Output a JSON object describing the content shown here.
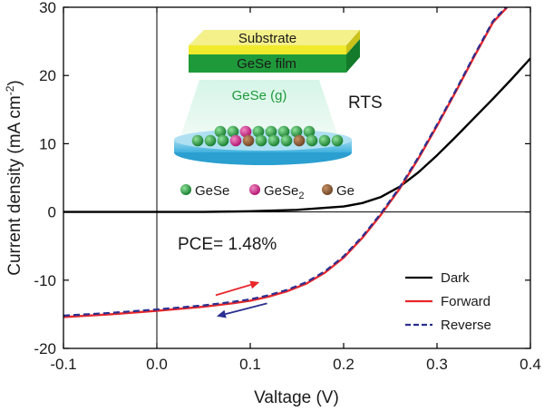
{
  "chart_data": {
    "type": "line",
    "xlabel": "Valtage (V)",
    "ylabel": "Current density (mA cm",
    "ylabel_sup": "-2",
    "ylabel_close": ")",
    "xlim": [
      -0.1,
      0.4
    ],
    "ylim": [
      -20,
      30
    ],
    "xticks": [
      -0.1,
      0.0,
      0.1,
      0.2,
      0.3,
      0.4
    ],
    "xtick_labels": [
      "-0.1",
      "0.0",
      "0.1",
      "0.2",
      "0.3",
      "0.4"
    ],
    "yticks": [
      -20,
      -10,
      0,
      10,
      20,
      30
    ],
    "ytick_labels": [
      "-20",
      "-10",
      "0",
      "10",
      "20",
      "30"
    ],
    "reference_lines": {
      "x": 0,
      "y": 0
    },
    "annotation": "PCE= 1.48%",
    "legend_position": "bottom-right",
    "series": [
      {
        "name": "Dark",
        "color": "#000000",
        "dash": "solid",
        "x": [
          -0.1,
          0.0,
          0.05,
          0.1,
          0.15,
          0.2,
          0.22,
          0.24,
          0.26,
          0.28,
          0.3,
          0.32,
          0.34,
          0.36,
          0.38,
          0.4
        ],
        "y": [
          0,
          0,
          0,
          0.1,
          0.3,
          0.8,
          1.3,
          2.2,
          3.7,
          5.8,
          8.3,
          11.0,
          13.8,
          16.6,
          19.5,
          22.5
        ]
      },
      {
        "name": "Forward",
        "color": "#e8262a",
        "dash": "solid",
        "x": [
          -0.1,
          -0.05,
          0.0,
          0.05,
          0.08,
          0.1,
          0.12,
          0.14,
          0.16,
          0.18,
          0.2,
          0.22,
          0.24,
          0.26,
          0.28,
          0.3,
          0.32,
          0.34,
          0.36,
          0.375
        ],
        "y": [
          -15.4,
          -15.0,
          -14.5,
          -13.9,
          -13.4,
          -13.0,
          -12.4,
          -11.6,
          -10.5,
          -8.9,
          -6.7,
          -3.8,
          -0.4,
          3.4,
          7.8,
          12.6,
          17.6,
          22.8,
          27.8,
          30
        ]
      },
      {
        "name": "Reverse",
        "color": "#2b2f8f",
        "dash": "dashed",
        "x": [
          -0.1,
          -0.05,
          0.0,
          0.05,
          0.08,
          0.1,
          0.12,
          0.14,
          0.16,
          0.18,
          0.2,
          0.22,
          0.24,
          0.26,
          0.28,
          0.3,
          0.32,
          0.34,
          0.36,
          0.374
        ],
        "y": [
          -15.2,
          -14.8,
          -14.3,
          -13.7,
          -13.2,
          -12.8,
          -12.2,
          -11.4,
          -10.3,
          -8.7,
          -6.5,
          -3.6,
          -0.2,
          3.6,
          8.0,
          12.8,
          17.8,
          23.0,
          28.0,
          30
        ]
      }
    ],
    "arrows": [
      {
        "color": "#e8262a",
        "from": [
          0.063,
          -12.2
        ],
        "to": [
          0.11,
          -10.3
        ]
      },
      {
        "color": "#2b2f8f",
        "from": [
          0.118,
          -13.4
        ],
        "to": [
          0.064,
          -15.3
        ]
      }
    ]
  },
  "inset": {
    "substrate_label": "Substrate",
    "film_label": "GeSe film",
    "vapor_label": "GeSe (g)",
    "process_label": "RTS",
    "legend": [
      {
        "label": "GeSe",
        "color": "#1f9a3a"
      },
      {
        "label": "GeSe",
        "sub": "2",
        "color": "#d81b8a"
      },
      {
        "label": "Ge",
        "color": "#8a5a34"
      }
    ]
  }
}
